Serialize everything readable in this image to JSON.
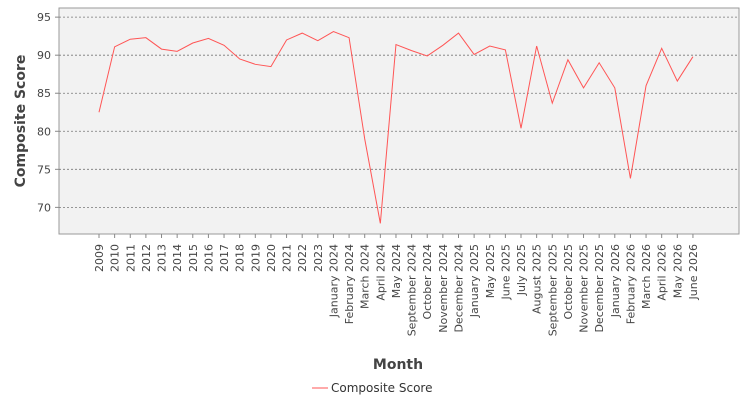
{
  "chart_data": {
    "type": "line",
    "title": "",
    "xlabel": "Month",
    "ylabel": "Composite Score",
    "ylim": [
      66.5,
      96.2
    ],
    "yticks": [
      70,
      75,
      80,
      85,
      90,
      95
    ],
    "grid": "horizontal dashed",
    "legend_position": "bottom-center",
    "categories": [
      "2009",
      "2010",
      "2011",
      "2012",
      "2013",
      "2014",
      "2015",
      "2016",
      "2017",
      "2018",
      "2019",
      "2020",
      "2021",
      "2022",
      "2023",
      "January 2024",
      "February 2024",
      "March 2024",
      "April 2024",
      "May 2024",
      "September 2024",
      "October 2024",
      "November 2024",
      "December 2024",
      "January 2025",
      "May 2025",
      "June 2025",
      "July 2025",
      "August 2025",
      "September 2025",
      "October 2025",
      "November 2025",
      "December 2025",
      "January 2026",
      "February 2026",
      "March 2026",
      "April 2026",
      "May 2026",
      "June 2026"
    ],
    "series": [
      {
        "name": "Composite Score",
        "color": "#ff5555",
        "values": [
          82.5,
          91.1,
          92.1,
          92.3,
          90.8,
          90.5,
          91.6,
          92.2,
          91.3,
          89.5,
          88.8,
          88.5,
          92.0,
          92.9,
          91.9,
          93.1,
          92.3,
          79.0,
          67.9,
          91.4,
          90.6,
          89.9,
          91.3,
          92.9,
          90.1,
          91.2,
          90.7,
          80.4,
          91.2,
          83.7,
          89.4,
          85.7,
          89.0,
          85.7,
          73.8,
          86.0,
          90.9,
          86.6,
          89.8
        ]
      }
    ]
  }
}
